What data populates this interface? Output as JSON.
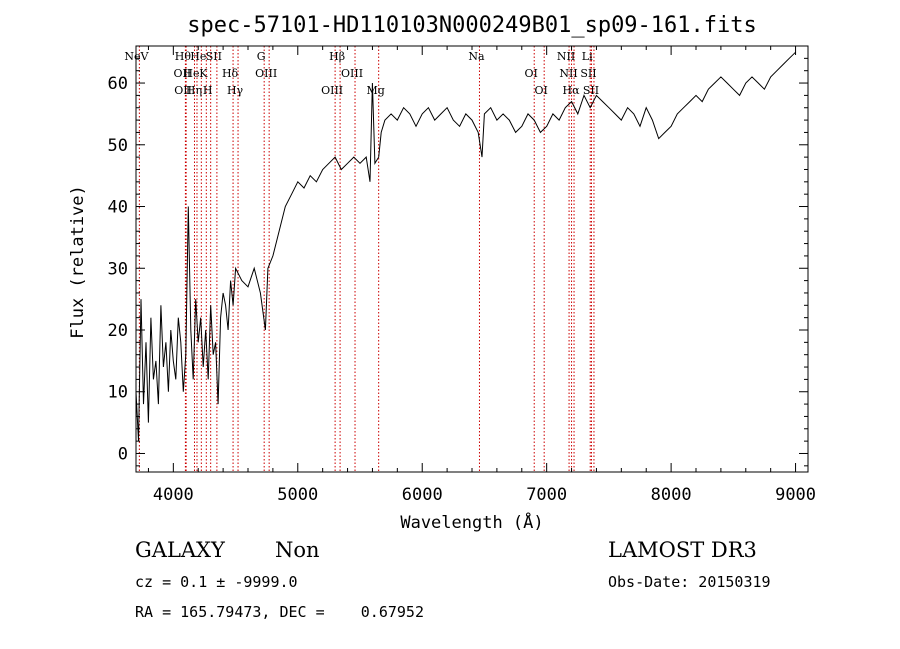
{
  "chart_data": {
    "type": "line",
    "title": "spec-57101-HD110103N000249B01_sp09-161.fits",
    "xlabel": "Wavelength (Å)",
    "ylabel": "Flux (relative)",
    "xlim": [
      3700,
      9100
    ],
    "ylim": [
      -3,
      66
    ],
    "xticks": [
      4000,
      5000,
      6000,
      7000,
      8000,
      9000
    ],
    "yticks": [
      0,
      10,
      20,
      30,
      40,
      50,
      60
    ],
    "grid": false,
    "line_color": "#000000",
    "marker_color": "#cc0000",
    "spectrum": {
      "x": [
        3700,
        3720,
        3740,
        3760,
        3780,
        3800,
        3820,
        3840,
        3860,
        3880,
        3900,
        3920,
        3940,
        3960,
        3980,
        4000,
        4020,
        4040,
        4060,
        4080,
        4100,
        4120,
        4140,
        4160,
        4180,
        4200,
        4220,
        4240,
        4260,
        4280,
        4300,
        4320,
        4340,
        4360,
        4380,
        4400,
        4420,
        4440,
        4460,
        4480,
        4500,
        4550,
        4600,
        4650,
        4700,
        4740,
        4760,
        4800,
        4850,
        4900,
        4950,
        5000,
        5050,
        5100,
        5150,
        5200,
        5250,
        5300,
        5350,
        5400,
        5450,
        5500,
        5550,
        5580,
        5600,
        5620,
        5650,
        5670,
        5700,
        5750,
        5800,
        5850,
        5900,
        5950,
        6000,
        6050,
        6100,
        6150,
        6200,
        6250,
        6300,
        6350,
        6400,
        6450,
        6480,
        6500,
        6550,
        6600,
        6650,
        6700,
        6750,
        6800,
        6850,
        6900,
        6950,
        7000,
        7050,
        7100,
        7150,
        7200,
        7250,
        7300,
        7350,
        7400,
        7450,
        7500,
        7550,
        7600,
        7650,
        7700,
        7750,
        7800,
        7850,
        7900,
        7950,
        8000,
        8050,
        8100,
        8150,
        8200,
        8250,
        8300,
        8350,
        8400,
        8450,
        8500,
        8550,
        8600,
        8650,
        8700,
        8750,
        8800,
        8850,
        8900,
        8950,
        9000
      ],
      "y": [
        10,
        2,
        25,
        8,
        18,
        5,
        22,
        12,
        15,
        8,
        24,
        14,
        18,
        10,
        20,
        15,
        12,
        22,
        18,
        10,
        16,
        40,
        20,
        12,
        25,
        18,
        22,
        14,
        20,
        12,
        24,
        16,
        18,
        8,
        22,
        26,
        24,
        20,
        28,
        24,
        30,
        28,
        27,
        30,
        26,
        20,
        30,
        32,
        36,
        40,
        42,
        44,
        43,
        45,
        44,
        46,
        47,
        48,
        46,
        47,
        48,
        47,
        48,
        44,
        60,
        47,
        48,
        52,
        54,
        55,
        54,
        56,
        55,
        53,
        55,
        56,
        54,
        55,
        56,
        54,
        53,
        55,
        54,
        52,
        48,
        55,
        56,
        54,
        55,
        54,
        52,
        53,
        55,
        54,
        52,
        53,
        55,
        54,
        56,
        57,
        55,
        58,
        56,
        58,
        57,
        56,
        55,
        54,
        56,
        55,
        53,
        56,
        54,
        51,
        52,
        53,
        55,
        56,
        57,
        58,
        57,
        59,
        60,
        61,
        60,
        59,
        58,
        60,
        61,
        60,
        59,
        61,
        62,
        63,
        64,
        65
      ]
    },
    "line_markers": [
      {
        "label": "NeV",
        "wavelength": 3727
      },
      {
        "label": "OII",
        "wavelength": 4097
      },
      {
        "label": "OII",
        "wavelength": 4103
      },
      {
        "label": "Hθ",
        "wavelength": 4101
      },
      {
        "label": "He",
        "wavelength": 4170
      },
      {
        "label": "Hη",
        "wavelength": 4190
      },
      {
        "label": "He",
        "wavelength": 4225
      },
      {
        "label": "K",
        "wavelength": 4265
      },
      {
        "label": "H",
        "wavelength": 4300
      },
      {
        "label": "SII",
        "wavelength": 4350
      },
      {
        "label": "Hδ",
        "wavelength": 4480
      },
      {
        "label": "Hγ",
        "wavelength": 4520
      },
      {
        "label": "G",
        "wavelength": 4730
      },
      {
        "label": "OIII",
        "wavelength": 4770
      },
      {
        "label": "OIII",
        "wavelength": 5300
      },
      {
        "label": "Hβ",
        "wavelength": 5340
      },
      {
        "label": "OIII",
        "wavelength": 5460
      },
      {
        "label": "Mg",
        "wavelength": 5650
      },
      {
        "label": "Na",
        "wavelength": 6460
      },
      {
        "label": "OI",
        "wavelength": 6900
      },
      {
        "label": "OI",
        "wavelength": 6980
      },
      {
        "label": "NII",
        "wavelength": 7180
      },
      {
        "label": "NII",
        "wavelength": 7200
      },
      {
        "label": "Hα",
        "wavelength": 7220
      },
      {
        "label": "Li",
        "wavelength": 7350
      },
      {
        "label": "SII",
        "wavelength": 7360
      },
      {
        "label": "SII",
        "wavelength": 7380
      }
    ]
  },
  "info": {
    "class": "GALAXY",
    "subclass": "Non",
    "survey": "LAMOST DR3",
    "cz": "cz = 0.1 ± -9999.0",
    "obs_date": "Obs-Date: 20150319",
    "radec": "RA = 165.79473, DEC =    0.67952"
  }
}
